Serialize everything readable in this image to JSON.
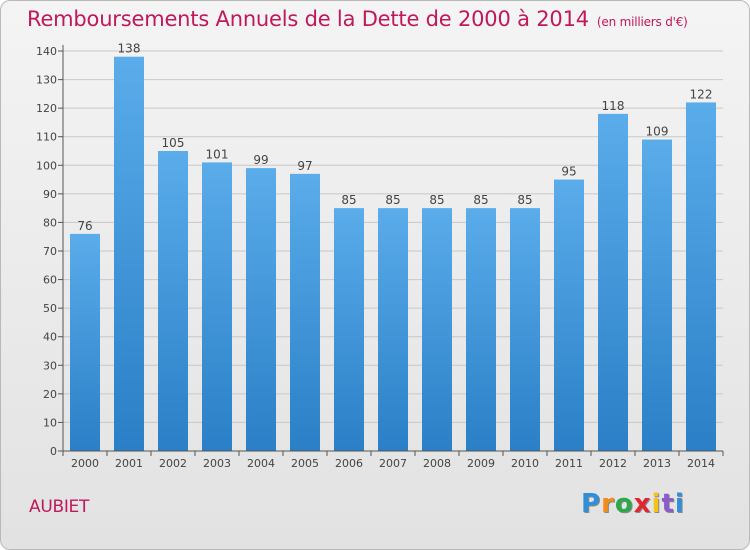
{
  "header": {
    "title": "Remboursements Annuels de la Dette de 2000 à 2014",
    "subtitle": "(en milliers d'€)"
  },
  "footer": {
    "town": "AUBIET",
    "logo_letters": [
      "P",
      "r",
      "o",
      "x",
      "i",
      "t",
      "i"
    ]
  },
  "colors": {
    "title": "#c0185c",
    "bar_top": "#5aacea",
    "bar_bottom": "#2a7fc6"
  },
  "chart_data": {
    "type": "bar",
    "title": "Remboursements Annuels de la Dette de 2000 à 2014",
    "subtitle": "(en milliers d'€)",
    "categories": [
      "2000",
      "2001",
      "2002",
      "2003",
      "2004",
      "2005",
      "2006",
      "2007",
      "2008",
      "2009",
      "2010",
      "2011",
      "2012",
      "2013",
      "2014"
    ],
    "values": [
      76,
      138,
      105,
      101,
      99,
      97,
      85,
      85,
      85,
      85,
      85,
      95,
      118,
      109,
      122
    ],
    "ylim": [
      0,
      140
    ],
    "yticks": [
      0,
      10,
      20,
      30,
      40,
      50,
      60,
      70,
      80,
      90,
      100,
      110,
      120,
      130,
      140
    ],
    "grid": true,
    "legend": "none"
  }
}
